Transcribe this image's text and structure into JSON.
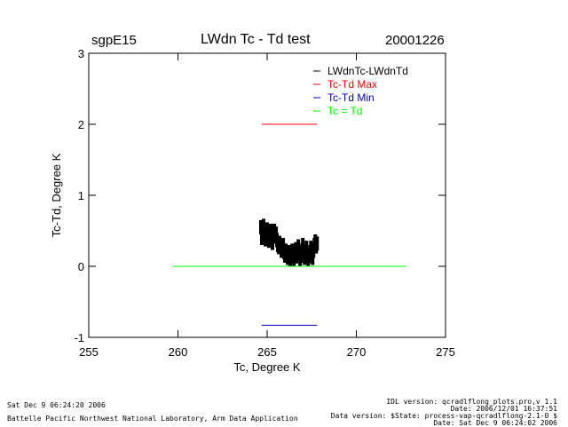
{
  "header": {
    "site": "sgpE15",
    "title": "LWdn Tc - Td test",
    "date": "20001226"
  },
  "footer": {
    "left_date": "Sat Dec  9 06:24:20 2006",
    "left_lab": "Battelle Pacific Northwest National Laboratory, Arm Data Application",
    "right_lines": [
      "IDL version: qcradlflong_plots.pro,v 1.1",
      "Date: 2006/12/01 16:37:51",
      "Data version: $State: process-vap-qcradlflong-2.1-0 $",
      "Date: Sat Dec  9 06:24:02 2006"
    ]
  },
  "colors": {
    "data": "#000000",
    "max": "#ff0000",
    "min": "#0000a0",
    "equal": "#00ff00"
  },
  "chart_data": {
    "type": "scatter",
    "title": "LWdn Tc - Td test",
    "xlabel": "Tc, Degree K",
    "ylabel": "Tc-Td, Degree K",
    "xlim": [
      255,
      275
    ],
    "ylim": [
      -1,
      3
    ],
    "xticks": [
      255,
      260,
      265,
      270,
      275
    ],
    "yticks": [
      -1,
      0,
      1,
      2,
      3
    ],
    "xtick_labels": [
      "255",
      "260",
      "265",
      "270",
      "275"
    ],
    "ytick_labels": [
      "-1",
      "0",
      "1",
      "2",
      "3"
    ],
    "legend_position": "top-right",
    "series": [
      {
        "name": "LWdnTc-LWdnTd",
        "color": "#000000",
        "kind": "scatter",
        "points": [
          [
            264.65,
            0.55
          ],
          [
            264.7,
            0.4
          ],
          [
            264.75,
            0.5
          ],
          [
            264.8,
            0.57
          ],
          [
            264.85,
            0.45
          ],
          [
            264.9,
            0.38
          ],
          [
            264.95,
            0.48
          ],
          [
            265.0,
            0.52
          ],
          [
            265.05,
            0.42
          ],
          [
            265.1,
            0.36
          ],
          [
            265.15,
            0.45
          ],
          [
            265.2,
            0.5
          ],
          [
            265.25,
            0.4
          ],
          [
            265.3,
            0.33
          ],
          [
            265.35,
            0.44
          ],
          [
            265.4,
            0.5
          ],
          [
            265.45,
            0.42
          ],
          [
            265.5,
            0.46
          ],
          [
            265.55,
            0.37
          ],
          [
            265.6,
            0.3
          ],
          [
            265.65,
            0.27
          ],
          [
            265.7,
            0.33
          ],
          [
            265.75,
            0.28
          ],
          [
            265.8,
            0.22
          ],
          [
            265.85,
            0.25
          ],
          [
            265.9,
            0.3
          ],
          [
            265.95,
            0.2
          ],
          [
            266.0,
            0.15
          ],
          [
            266.05,
            0.22
          ],
          [
            266.1,
            0.18
          ],
          [
            266.15,
            0.12
          ],
          [
            266.2,
            0.2
          ],
          [
            266.25,
            0.17
          ],
          [
            266.3,
            0.1
          ],
          [
            266.35,
            0.15
          ],
          [
            266.4,
            0.22
          ],
          [
            266.45,
            0.16
          ],
          [
            266.5,
            0.1
          ],
          [
            266.55,
            0.18
          ],
          [
            266.6,
            0.24
          ],
          [
            266.65,
            0.14
          ],
          [
            266.7,
            0.2
          ],
          [
            266.75,
            0.28
          ],
          [
            266.8,
            0.18
          ],
          [
            266.85,
            0.1
          ],
          [
            266.9,
            0.15
          ],
          [
            266.95,
            0.22
          ],
          [
            267.0,
            0.3
          ],
          [
            267.05,
            0.2
          ],
          [
            267.1,
            0.12
          ],
          [
            267.15,
            0.18
          ],
          [
            267.2,
            0.26
          ],
          [
            267.25,
            0.16
          ],
          [
            267.3,
            0.1
          ],
          [
            267.35,
            0.14
          ],
          [
            267.4,
            0.2
          ],
          [
            267.45,
            0.26
          ],
          [
            267.5,
            0.18
          ],
          [
            267.55,
            0.12
          ],
          [
            267.6,
            0.22
          ],
          [
            267.65,
            0.3
          ],
          [
            267.7,
            0.35
          ],
          [
            267.75,
            0.28
          ],
          [
            267.8,
            0.32
          ]
        ]
      },
      {
        "name": "Tc-Td Max",
        "color": "#ff0000",
        "kind": "line",
        "x": [
          264.7,
          267.8
        ],
        "y": [
          2.0,
          2.0
        ]
      },
      {
        "name": "Tc-Td Min",
        "color": "#0000a0",
        "kind": "line",
        "x": [
          264.7,
          267.8
        ],
        "y": [
          -0.83,
          -0.83
        ]
      },
      {
        "name": "Tc = Td",
        "color": "#00ff00",
        "kind": "line",
        "x": [
          259.7,
          272.8
        ],
        "y": [
          0.0,
          0.0
        ]
      }
    ]
  }
}
